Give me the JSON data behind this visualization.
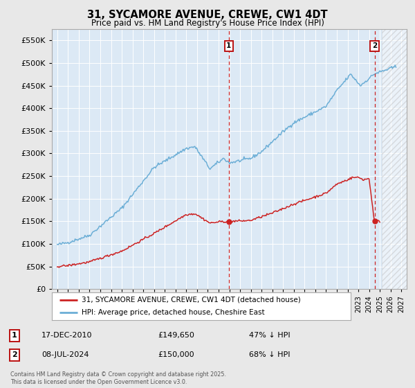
{
  "title": "31, SYCAMORE AVENUE, CREWE, CW1 4DT",
  "subtitle": "Price paid vs. HM Land Registry's House Price Index (HPI)",
  "hpi_label": "HPI: Average price, detached house, Cheshire East",
  "price_label": "31, SYCAMORE AVENUE, CREWE, CW1 4DT (detached house)",
  "annotation1_date": "17-DEC-2010",
  "annotation1_price": "£149,650",
  "annotation1_hpi": "47% ↓ HPI",
  "annotation1_year": 2010.96,
  "annotation1_value": 149650,
  "annotation2_date": "08-JUL-2024",
  "annotation2_price": "£150,000",
  "annotation2_hpi": "68% ↓ HPI",
  "annotation2_year": 2024.52,
  "annotation2_value": 150000,
  "hpi_color": "#6baed6",
  "price_color": "#cc2222",
  "vline_color": "#cc2222",
  "background_color": "#e8e8e8",
  "plot_bg_color": "#dce9f5",
  "grid_color": "#ffffff",
  "footer": "Contains HM Land Registry data © Crown copyright and database right 2025.\nThis data is licensed under the Open Government Licence v3.0.",
  "ylim": [
    0,
    575000
  ],
  "yticks": [
    0,
    50000,
    100000,
    150000,
    200000,
    250000,
    300000,
    350000,
    400000,
    450000,
    500000,
    550000
  ],
  "xlim": [
    1994.5,
    2027.5
  ],
  "legend_box_color": "#ffffff"
}
